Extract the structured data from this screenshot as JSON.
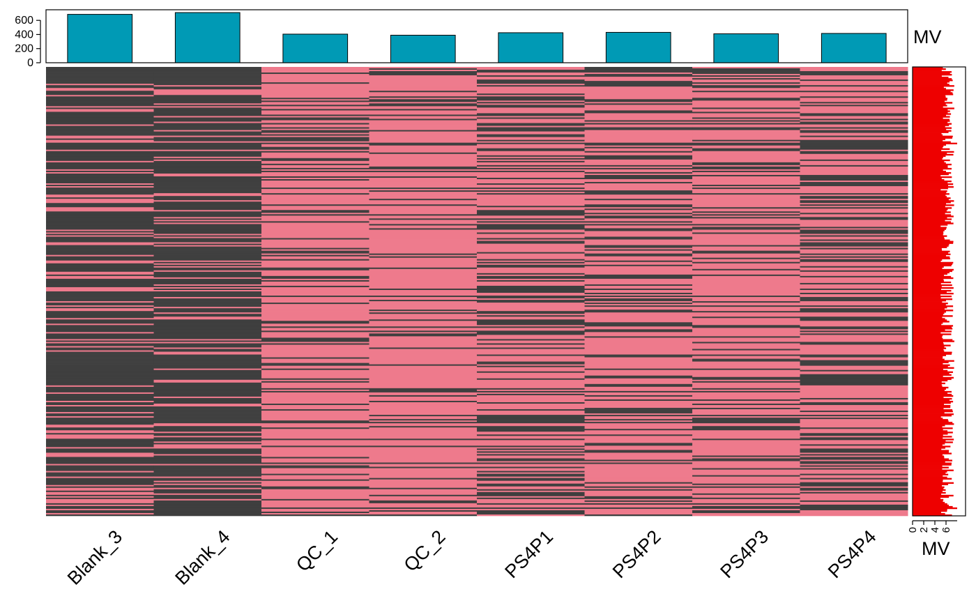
{
  "chart_data": {
    "type": "heatmap",
    "title": "",
    "samples": [
      "Blank_3",
      "Blank_4",
      "QC_1",
      "QC_2",
      "PS4P1",
      "PS4P2",
      "PS4P3",
      "PS4P4"
    ],
    "heatmap": {
      "value_colors": {
        "present": "#EE7A8C",
        "missing": "#3F3F3F"
      },
      "missing_fraction": [
        0.72,
        0.74,
        0.28,
        0.22,
        0.4,
        0.34,
        0.3,
        0.42
      ]
    },
    "top_bar": {
      "label": "MV",
      "values": [
        685,
        710,
        405,
        390,
        425,
        430,
        410,
        415
      ],
      "ylim": [
        0,
        750
      ],
      "ticks": [
        "0",
        "200",
        "400",
        "600"
      ],
      "color": "#009AB5"
    },
    "side_bar": {
      "label": "MV",
      "xlim": [
        0,
        8
      ],
      "ticks": [
        "0",
        "2",
        "4",
        "6"
      ],
      "color": "#EE0000"
    }
  }
}
